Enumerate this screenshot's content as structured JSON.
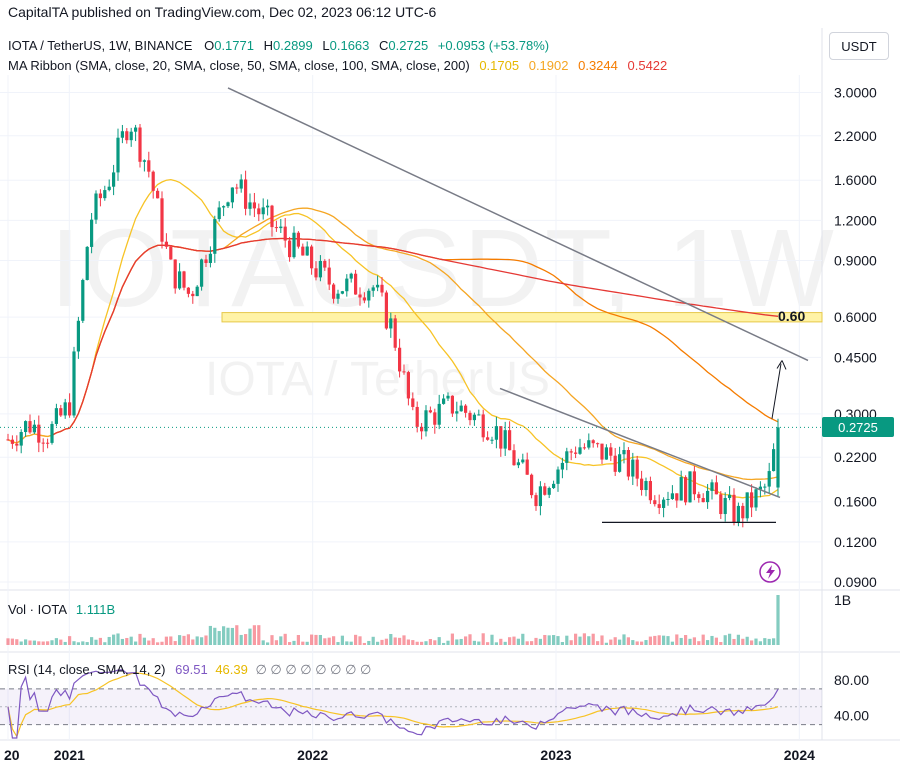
{
  "header": {
    "publisher": "CapitalTA published on TradingView.com, Dec 02, 2023 06:12 UTC-6",
    "symbol": "IOTA / TetherUS, 1W, BINANCE",
    "ohlc": {
      "o_label": "O",
      "o": "0.1771",
      "h_label": "H",
      "h": "0.2899",
      "l_label": "L",
      "l": "0.1663",
      "c_label": "C",
      "c": "0.2725",
      "change": "+0.0953 (+53.78%)"
    },
    "ma_ribbon": {
      "label": "MA Ribbon (SMA, close, 20, SMA, close, 50, SMA, close, 100, SMA, close, 200)",
      "v20": "0.1705",
      "v50": "0.1902",
      "v100": "0.3244",
      "v200": "0.5422"
    },
    "currency": "USDT"
  },
  "watermark": {
    "main": "IOTAUSDT, 1W",
    "sub": "IOTA / TetherUS"
  },
  "volume": {
    "title": "Vol · IOTA",
    "value": "1.111B",
    "axis_label": "1B"
  },
  "rsi": {
    "title": "RSI (14, close, SMA, 14, 2)",
    "v1": "69.51",
    "v2": "46.39",
    "na": "∅ ∅ ∅ ∅ ∅ ∅ ∅ ∅"
  },
  "annotations": {
    "target": "0.60"
  },
  "colors": {
    "up": "#089981",
    "down": "#f23645",
    "ma20": "#f7c325",
    "ma50": "#f5a623",
    "ma100": "#f57c00",
    "ma200": "#e53935",
    "rsi": "#7e57c2",
    "rsi_ma": "#f7c325",
    "zone": "#fff3a6",
    "trend": "#787b86"
  },
  "icons": {
    "lightning": "lightning-icon"
  },
  "chart_data": {
    "type": "candlestick",
    "scale": "log",
    "ylim": [
      0.085,
      3.4
    ],
    "price_axis_ticks": [
      "3.0000",
      "2.2000",
      "1.6000",
      "1.2000",
      "0.9000",
      "0.6000",
      "0.4500",
      "0.3000",
      "0.2200",
      "0.1600",
      "0.1200",
      "0.0900"
    ],
    "time_axis_ticks": [
      "20",
      "2021",
      "2022",
      "2023",
      "2024"
    ],
    "last_price": "0.2725",
    "resistance_zone": [
      0.58,
      0.62
    ],
    "support_level": 0.138,
    "target_price": 0.6,
    "close_path": [
      {
        "date": "2020-10-01",
        "close": 0.25
      },
      {
        "date": "2020-11-01",
        "close": 0.28
      },
      {
        "date": "2020-12-01",
        "close": 0.26
      },
      {
        "date": "2021-01-01",
        "close": 0.32
      },
      {
        "date": "2021-02-01",
        "close": 1.2
      },
      {
        "date": "2021-03-01",
        "close": 1.6
      },
      {
        "date": "2021-04-01",
        "close": 2.5
      },
      {
        "date": "2021-05-01",
        "close": 1.7
      },
      {
        "date": "2021-06-01",
        "close": 0.85
      },
      {
        "date": "2021-07-01",
        "close": 0.7
      },
      {
        "date": "2021-09-01",
        "close": 1.6
      },
      {
        "date": "2021-10-01",
        "close": 1.35
      },
      {
        "date": "2021-12-01",
        "close": 1.0
      },
      {
        "date": "2022-02-01",
        "close": 0.75
      },
      {
        "date": "2022-04-01",
        "close": 0.75
      },
      {
        "date": "2022-05-01",
        "close": 0.55
      },
      {
        "date": "2022-06-01",
        "close": 0.28
      },
      {
        "date": "2022-08-01",
        "close": 0.32
      },
      {
        "date": "2022-10-01",
        "close": 0.27
      },
      {
        "date": "2022-12-01",
        "close": 0.17
      },
      {
        "date": "2023-02-01",
        "close": 0.24
      },
      {
        "date": "2023-04-01",
        "close": 0.22
      },
      {
        "date": "2023-06-01",
        "close": 0.17
      },
      {
        "date": "2023-08-01",
        "close": 0.18
      },
      {
        "date": "2023-10-01",
        "close": 0.145
      },
      {
        "date": "2023-11-15",
        "close": 0.18
      },
      {
        "date": "2023-12-01",
        "close": 0.2725
      }
    ],
    "rsi": {
      "ticks": [
        "80.00",
        "40.00"
      ],
      "bands": [
        70,
        30
      ],
      "last": 69.51,
      "ma_last": 46.39
    }
  }
}
